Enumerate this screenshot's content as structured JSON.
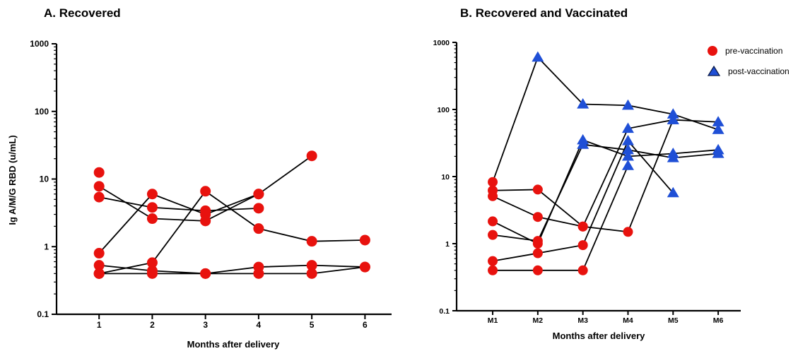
{
  "chart_data": [
    {
      "type": "line",
      "title": "A. Recovered",
      "xlabel": "Months after delivery",
      "ylabel": "Ig A/M/G RBD (u/mL)",
      "yscale": "log",
      "ylim": [
        0.1,
        1000
      ],
      "y_ticks": [
        "0.1",
        "1",
        "10",
        "100",
        "1000"
      ],
      "x_ticks": [
        "1",
        "2",
        "3",
        "4",
        "5",
        "6"
      ],
      "xlim": [
        0.2,
        6.5
      ],
      "marker": "circle",
      "marker_color": "#e8120e",
      "line_color": "#000000",
      "series": [
        {
          "points": [
            [
              1,
              0.8
            ],
            [
              2,
              6.0
            ],
            [
              3,
              3.0
            ],
            [
              4,
              6.0
            ],
            [
              5,
              22.0
            ]
          ]
        },
        {
          "points": [
            [
              1,
              7.8
            ],
            [
              2,
              2.6
            ],
            [
              3,
              2.4
            ],
            [
              4,
              6.0
            ]
          ]
        },
        {
          "points": [
            [
              1,
              5.4
            ],
            [
              2,
              3.8
            ],
            [
              3,
              3.4
            ],
            [
              4,
              3.7
            ]
          ]
        },
        {
          "points": [
            [
              1,
              0.4
            ],
            [
              2,
              0.58
            ],
            [
              3,
              6.6
            ],
            [
              4,
              1.85
            ],
            [
              5,
              1.2
            ],
            [
              6,
              1.25
            ]
          ]
        },
        {
          "points": [
            [
              1,
              0.53
            ],
            [
              2,
              0.44
            ],
            [
              3,
              0.4
            ],
            [
              4,
              0.5
            ],
            [
              5,
              0.53
            ],
            [
              6,
              0.5
            ]
          ]
        },
        {
          "points": [
            [
              1,
              0.4
            ],
            [
              2,
              0.4
            ],
            [
              3,
              0.4
            ],
            [
              4,
              0.4
            ],
            [
              5,
              0.4
            ],
            [
              6,
              0.5
            ]
          ]
        }
      ],
      "extra_points": [
        [
          1,
          12.5
        ],
        [
          1,
          0.4
        ]
      ]
    },
    {
      "type": "line",
      "title": "B. Recovered and Vaccinated",
      "xlabel": "Months after delivery",
      "ylabel": "",
      "yscale": "log",
      "ylim": [
        0.1,
        1000
      ],
      "y_ticks": [
        "0.1",
        "1",
        "10",
        "100",
        "1000"
      ],
      "x_ticks": [
        "M1",
        "M2",
        "M3",
        "M4",
        "M5",
        "M6"
      ],
      "xlim": [
        0.2,
        6.5
      ],
      "line_color": "#000000",
      "legend": [
        {
          "label": "pre-vaccination",
          "marker": "circle",
          "color": "#e8120e"
        },
        {
          "label": "post-vaccination",
          "marker": "triangle",
          "color": "#1f4fd6"
        }
      ],
      "legend_position": "top-right",
      "series": [
        {
          "points": [
            [
              1,
              8.3,
              "pre"
            ],
            [
              2,
              600,
              "post"
            ],
            [
              3,
              120,
              "post"
            ],
            [
              4,
              115,
              "post"
            ],
            [
              5,
              85,
              "post"
            ],
            [
              6,
              50,
              "post"
            ]
          ]
        },
        {
          "points": [
            [
              1,
              6.2,
              "pre"
            ],
            [
              2,
              6.4,
              "pre"
            ],
            [
              3,
              1.8,
              "pre"
            ],
            [
              4,
              52,
              "post"
            ],
            [
              5,
              70,
              "post"
            ],
            [
              6,
              65,
              "post"
            ]
          ]
        },
        {
          "points": [
            [
              1,
              5.1,
              "pre"
            ],
            [
              2,
              2.5,
              "pre"
            ],
            [
              3,
              1.8,
              "pre"
            ],
            [
              4,
              1.5,
              "pre"
            ],
            [
              5,
              70,
              "post"
            ]
          ]
        },
        {
          "points": [
            [
              1,
              2.15,
              "pre"
            ],
            [
              2,
              1.0,
              "pre"
            ],
            [
              3,
              35,
              "post"
            ],
            [
              4,
              20,
              "post"
            ],
            [
              5,
              22,
              "post"
            ],
            [
              6,
              25,
              "post"
            ]
          ]
        },
        {
          "points": [
            [
              1,
              1.35,
              "pre"
            ],
            [
              2,
              1.1,
              "pre"
            ],
            [
              3,
              30,
              "post"
            ],
            [
              4,
              25,
              "post"
            ],
            [
              5,
              19,
              "post"
            ],
            [
              6,
              22,
              "post"
            ]
          ]
        },
        {
          "points": [
            [
              1,
              0.55,
              "pre"
            ],
            [
              2,
              0.72,
              "pre"
            ],
            [
              3,
              0.95,
              "pre"
            ],
            [
              4,
              34,
              "post"
            ],
            [
              5,
              5.7,
              "post"
            ]
          ]
        },
        {
          "points": [
            [
              1,
              0.4,
              "pre"
            ],
            [
              2,
              0.4,
              "pre"
            ],
            [
              3,
              0.4,
              "pre"
            ],
            [
              4,
              14.5,
              "post"
            ]
          ]
        }
      ]
    }
  ]
}
